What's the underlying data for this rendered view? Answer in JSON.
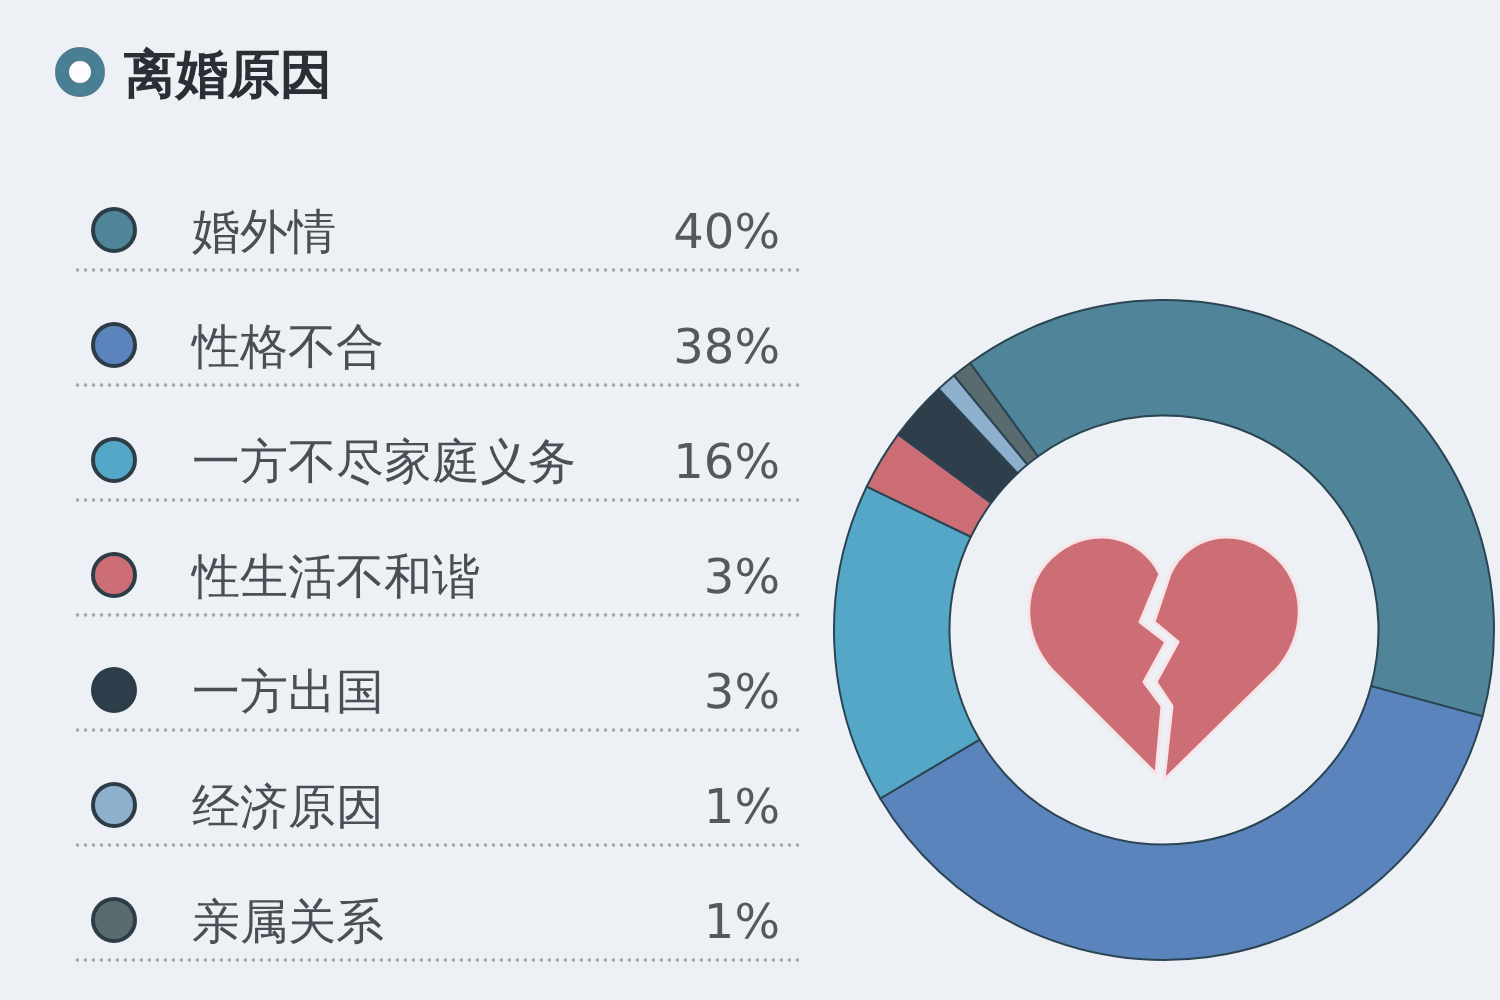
{
  "chart_data": {
    "type": "donut",
    "title": "离婚原因",
    "categories": [
      "婚外情",
      "性格不合",
      "一方不尽家庭义务",
      "性生活不和谐",
      "一方出国",
      "经济原因",
      "亲属关系"
    ],
    "values": [
      40,
      38,
      16,
      3,
      3,
      1,
      1
    ],
    "value_labels": [
      "40%",
      "38%",
      "16%",
      "3%",
      "3%",
      "1%",
      "1%"
    ],
    "colors": [
      "#4f8499",
      "#5b84bd",
      "#55a7c8",
      "#cd6e76",
      "#2e3e4b",
      "#8eb0cc",
      "#5a6b70"
    ],
    "legend": "left"
  }
}
